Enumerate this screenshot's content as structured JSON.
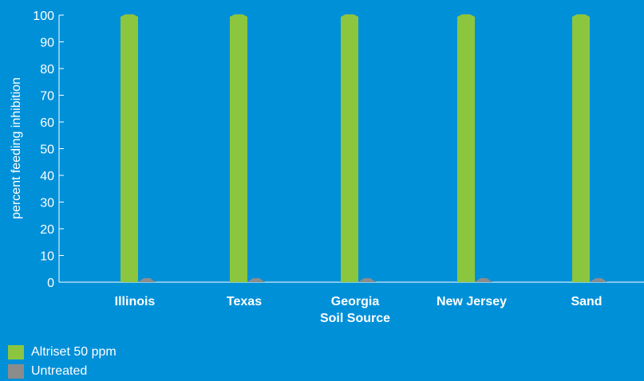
{
  "chart_data": {
    "type": "bar",
    "title": "",
    "xlabel": "",
    "ylabel": "percent feeding inhibition",
    "categories": [
      "Illinois",
      "Texas",
      "Georgia\nSoil Source",
      "New Jersey",
      "Sand"
    ],
    "series": [
      {
        "name": "Altriset 50 ppm",
        "color": "#8cc63f",
        "values": [
          100,
          100,
          100,
          100,
          100
        ]
      },
      {
        "name": "Untreated",
        "color": "#8c8c8c",
        "values": [
          0,
          0,
          0,
          0,
          0
        ]
      }
    ],
    "ylim": [
      0,
      100
    ],
    "yticks": [
      0,
      10,
      20,
      30,
      40,
      50,
      60,
      70,
      80,
      90,
      100
    ],
    "grid": false,
    "legend_position": "bottom-left",
    "background": "#0090d8",
    "axis_color": "#ffffff"
  },
  "legend": {
    "items": [
      {
        "label": "Altriset 50 ppm",
        "color": "#8cc63f"
      },
      {
        "label": "Untreated",
        "color": "#8c8c8c"
      }
    ]
  }
}
